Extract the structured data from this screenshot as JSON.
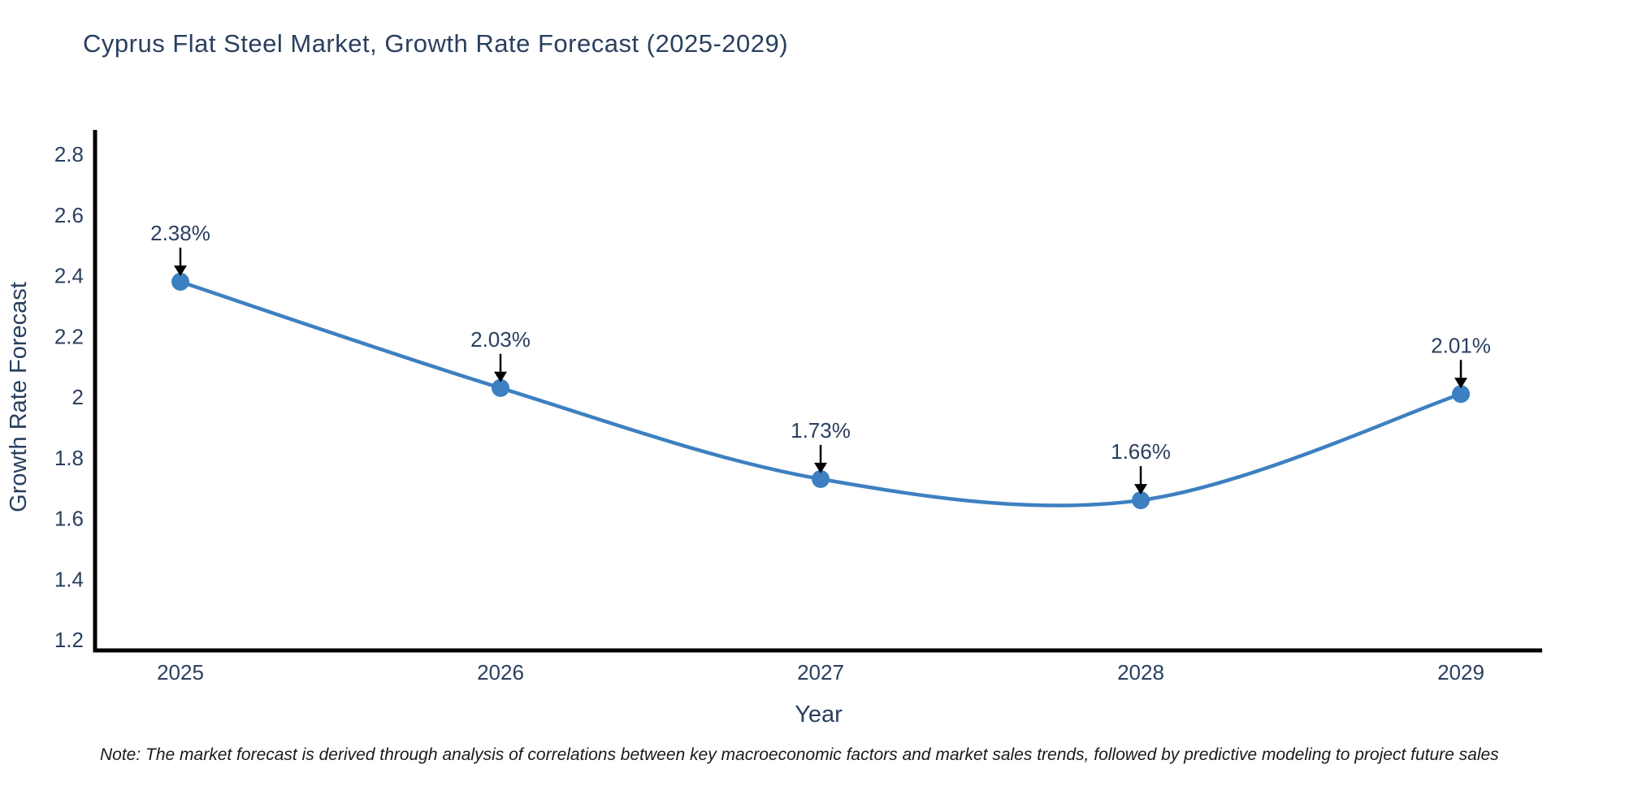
{
  "title": "Cyprus Flat Steel Market, Growth Rate Forecast (2025-2029)",
  "note": "Note: The market forecast is derived through analysis of correlations between key macroeconomic factors and market sales trends, followed by predictive modeling to project future sales",
  "colors": {
    "line": "#3d80c1",
    "marker": "#3d80c1",
    "text": "#2a3f5f",
    "axis": "#000000",
    "arrow": "#000000",
    "note_text": "#1a1a1a",
    "background": "#ffffff"
  },
  "chart_data": {
    "type": "line",
    "title": "Cyprus Flat Steel Market, Growth Rate Forecast (2025-2029)",
    "x": [
      "2025",
      "2026",
      "2027",
      "2028",
      "2029"
    ],
    "series": [
      {
        "name": "Growth Rate Forecast",
        "values": [
          2.38,
          2.03,
          1.73,
          1.66,
          2.01
        ]
      }
    ],
    "point_labels": [
      "2.38%",
      "2.03%",
      "1.73%",
      "1.66%",
      "2.01%"
    ],
    "xlabel": "Year",
    "ylabel": "Growth Rate Forecast",
    "ylim": [
      1.2,
      2.8
    ],
    "yticks": [
      1.2,
      1.4,
      1.6,
      1.8,
      2,
      2.2,
      2.4,
      2.6,
      2.8
    ],
    "ytick_labels": [
      "1.2",
      "1.4",
      "1.6",
      "1.8",
      "2",
      "2.2",
      "2.4",
      "2.6",
      "2.8"
    ],
    "line_shape": "spline",
    "grid": false,
    "legend_position": "none",
    "annotations_style": "value labels with black down arrows above each point"
  }
}
